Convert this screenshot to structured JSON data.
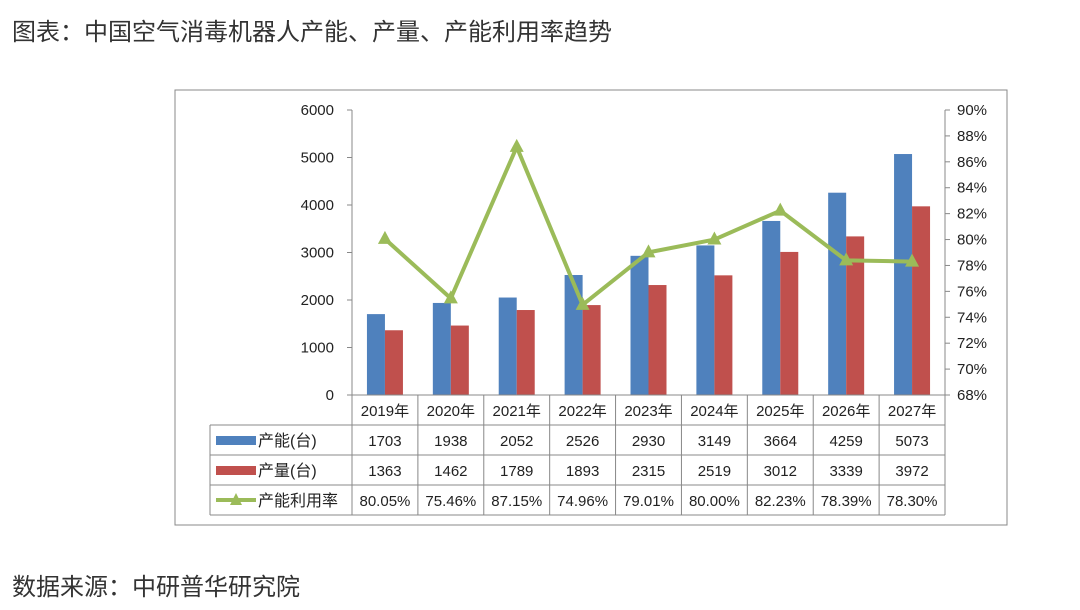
{
  "title": "图表：中国空气消毒机器人产能、产量、产能利用率趋势",
  "source": "数据来源：中研普华研究院",
  "chart_data": {
    "type": "bar",
    "categories": [
      "2019年",
      "2020年",
      "2021年",
      "2022年",
      "2023年",
      "2024年",
      "2025年",
      "2026年",
      "2027年"
    ],
    "series": [
      {
        "name": "产能(台)",
        "type": "bar",
        "axis": "left",
        "color": "#4f81bd",
        "values": [
          1703,
          1938,
          2052,
          2526,
          2930,
          3149,
          3664,
          4259,
          5073
        ]
      },
      {
        "name": "产量(台)",
        "type": "bar",
        "axis": "left",
        "color": "#c0504d",
        "values": [
          1363,
          1462,
          1789,
          1893,
          2315,
          2519,
          3012,
          3339,
          3972
        ]
      },
      {
        "name": "产能利用率",
        "type": "line",
        "axis": "right",
        "color": "#9bbb59",
        "values": [
          80.05,
          75.46,
          87.15,
          74.96,
          79.01,
          80.0,
          82.23,
          78.39,
          78.3
        ],
        "labels": [
          "80.05%",
          "75.46%",
          "87.15%",
          "74.96%",
          "79.01%",
          "80.00%",
          "82.23%",
          "78.39%",
          "78.30%"
        ]
      }
    ],
    "ylim_left": [
      0,
      6000
    ],
    "yticks_left": [
      "0",
      "1000",
      "2000",
      "3000",
      "4000",
      "5000",
      "6000"
    ],
    "ylim_right": [
      68,
      90
    ],
    "yticks_right": [
      "68%",
      "70%",
      "72%",
      "74%",
      "76%",
      "78%",
      "80%",
      "82%",
      "84%",
      "86%",
      "88%",
      "90%"
    ],
    "legend": "data-table-bottom",
    "grid": false
  }
}
